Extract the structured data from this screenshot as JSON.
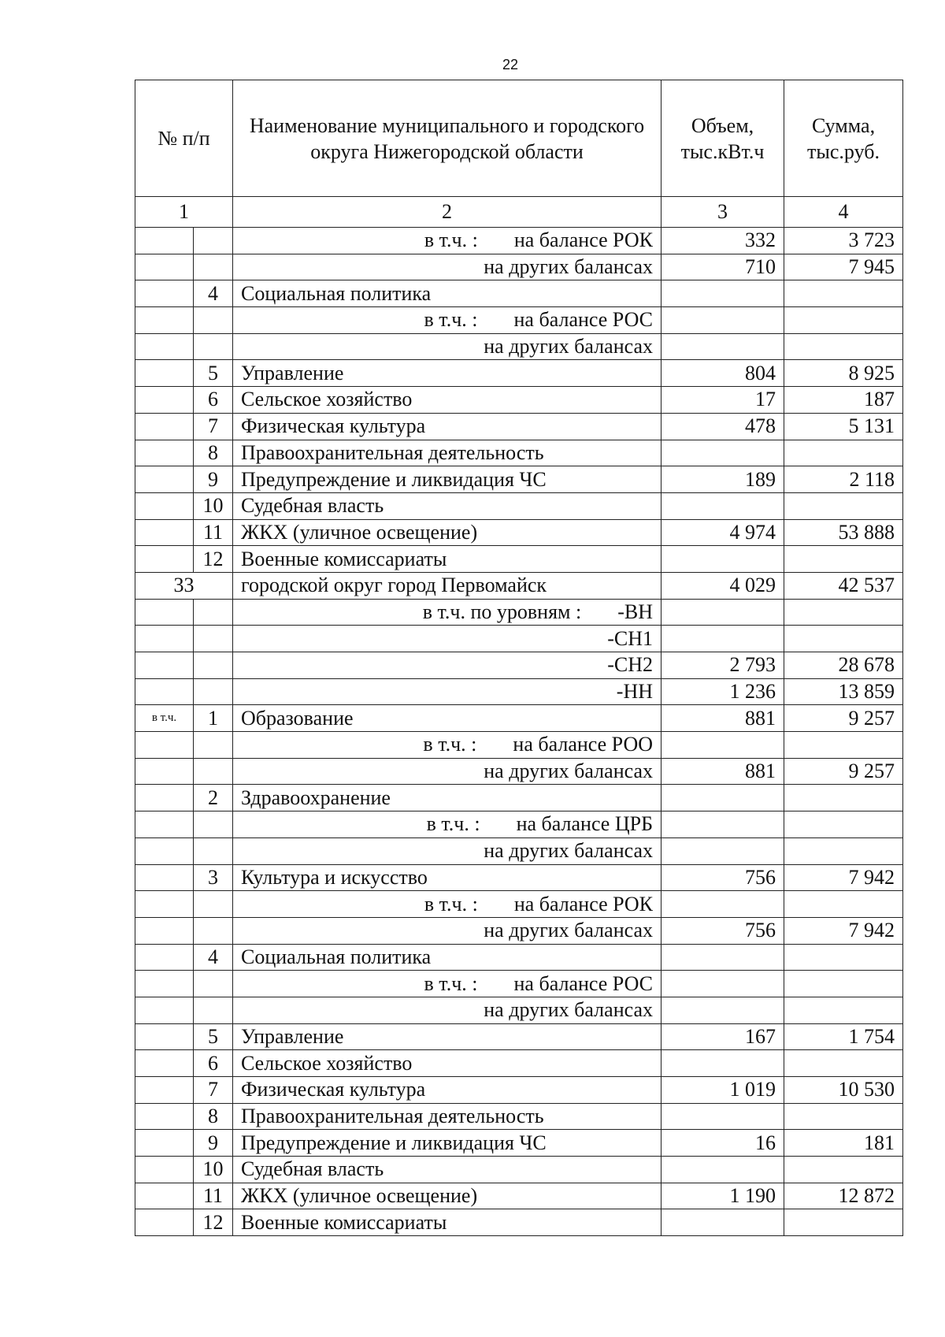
{
  "page_number": "22",
  "header": {
    "col1": "№ п/п",
    "col2": "Наименование муниципального и городского округа Нижегородской области",
    "col3": "Объем, тыс.кВт.ч",
    "col4": "Сумма, тыс.руб.",
    "num1": "1",
    "num2": "2",
    "num3": "3",
    "num4": "4"
  },
  "rows": [
    {
      "a": "",
      "b": "",
      "prefix": "в т.ч. :",
      "name": "на балансе РОК",
      "align": "right",
      "vol": "332",
      "sum": "3 723"
    },
    {
      "a": "",
      "b": "",
      "prefix": "",
      "name": "на других балансах",
      "align": "right",
      "vol": "710",
      "sum": "7 945"
    },
    {
      "a": "",
      "b": "4",
      "prefix": "",
      "name": "Социальная политика",
      "align": "left",
      "vol": "",
      "sum": ""
    },
    {
      "a": "",
      "b": "",
      "prefix": "в т.ч. :",
      "name": "на балансе РОС",
      "align": "right",
      "vol": "",
      "sum": ""
    },
    {
      "a": "",
      "b": "",
      "prefix": "",
      "name": "на других балансах",
      "align": "right",
      "vol": "",
      "sum": ""
    },
    {
      "a": "",
      "b": "5",
      "prefix": "",
      "name": "Управление",
      "align": "left",
      "vol": "804",
      "sum": "8 925"
    },
    {
      "a": "",
      "b": "6",
      "prefix": "",
      "name": "Сельское хозяйство",
      "align": "left",
      "vol": "17",
      "sum": "187"
    },
    {
      "a": "",
      "b": "7",
      "prefix": "",
      "name": "Физическая культура",
      "align": "left",
      "vol": "478",
      "sum": "5 131"
    },
    {
      "a": "",
      "b": "8",
      "prefix": "",
      "name": "Правоохранительная деятельность",
      "align": "left",
      "vol": "",
      "sum": ""
    },
    {
      "a": "",
      "b": "9",
      "prefix": "",
      "name": "Предупреждение и ликвидация ЧС",
      "align": "left",
      "vol": "189",
      "sum": "2 118"
    },
    {
      "a": "",
      "b": "10",
      "prefix": "",
      "name": "Судебная власть",
      "align": "left",
      "vol": "",
      "sum": ""
    },
    {
      "a": "",
      "b": "11",
      "prefix": "",
      "name": "ЖКХ (уличное освещение)",
      "align": "left",
      "vol": "4 974",
      "sum": "53 888"
    },
    {
      "a": "",
      "b": "12",
      "prefix": "",
      "name": "Военные комиссариаты",
      "align": "left",
      "vol": "",
      "sum": ""
    },
    {
      "a": "33",
      "b": null,
      "prefix": "",
      "name": "городской округ город Первомайск",
      "align": "left",
      "vol": "4 029",
      "sum": "42 537"
    },
    {
      "a": "",
      "b": "",
      "prefix": "в т.ч. по уровням :",
      "name": "-ВН",
      "align": "right",
      "vol": "",
      "sum": ""
    },
    {
      "a": "",
      "b": "",
      "prefix": "",
      "name": "-СН1",
      "align": "right",
      "vol": "",
      "sum": ""
    },
    {
      "a": "",
      "b": "",
      "prefix": "",
      "name": "-СН2",
      "align": "right",
      "vol": "2 793",
      "sum": "28 678"
    },
    {
      "a": "",
      "b": "",
      "prefix": "",
      "name": "-НН",
      "align": "right",
      "vol": "1 236",
      "sum": "13 859"
    },
    {
      "a": "в т.ч.",
      "b": "1",
      "prefix": "",
      "name": "Образование",
      "align": "left",
      "vol": "881",
      "sum": "9 257"
    },
    {
      "a": "",
      "b": "",
      "prefix": "в т.ч. :",
      "name": "на балансе РОО",
      "align": "right",
      "vol": "",
      "sum": ""
    },
    {
      "a": "",
      "b": "",
      "prefix": "",
      "name": "на других балансах",
      "align": "right",
      "vol": "881",
      "sum": "9 257"
    },
    {
      "a": "",
      "b": "2",
      "prefix": "",
      "name": "Здравоохранение",
      "align": "left",
      "vol": "",
      "sum": ""
    },
    {
      "a": "",
      "b": "",
      "prefix": "в т.ч. :",
      "name": "на балансе ЦРБ",
      "align": "right",
      "vol": "",
      "sum": ""
    },
    {
      "a": "",
      "b": "",
      "prefix": "",
      "name": "на других балансах",
      "align": "right",
      "vol": "",
      "sum": ""
    },
    {
      "a": "",
      "b": "3",
      "prefix": "",
      "name": "Культура и искусство",
      "align": "left",
      "vol": "756",
      "sum": "7 942"
    },
    {
      "a": "",
      "b": "",
      "prefix": "в т.ч. :",
      "name": "на балансе РОК",
      "align": "right",
      "vol": "",
      "sum": ""
    },
    {
      "a": "",
      "b": "",
      "prefix": "",
      "name": "на других балансах",
      "align": "right",
      "vol": "756",
      "sum": "7 942"
    },
    {
      "a": "",
      "b": "4",
      "prefix": "",
      "name": "Социальная политика",
      "align": "left",
      "vol": "",
      "sum": ""
    },
    {
      "a": "",
      "b": "",
      "prefix": "в т.ч. :",
      "name": "на балансе РОС",
      "align": "right",
      "vol": "",
      "sum": ""
    },
    {
      "a": "",
      "b": "",
      "prefix": "",
      "name": "на других балансах",
      "align": "right",
      "vol": "",
      "sum": ""
    },
    {
      "a": "",
      "b": "5",
      "prefix": "",
      "name": "Управление",
      "align": "left",
      "vol": "167",
      "sum": "1 754"
    },
    {
      "a": "",
      "b": "6",
      "prefix": "",
      "name": "Сельское хозяйство",
      "align": "left",
      "vol": "",
      "sum": ""
    },
    {
      "a": "",
      "b": "7",
      "prefix": "",
      "name": "Физическая культура",
      "align": "left",
      "vol": "1 019",
      "sum": "10 530"
    },
    {
      "a": "",
      "b": "8",
      "prefix": "",
      "name": "Правоохранительная деятельность",
      "align": "left",
      "vol": "",
      "sum": ""
    },
    {
      "a": "",
      "b": "9",
      "prefix": "",
      "name": "Предупреждение и ликвидация ЧС",
      "align": "left",
      "vol": "16",
      "sum": "181"
    },
    {
      "a": "",
      "b": "10",
      "prefix": "",
      "name": "Судебная власть",
      "align": "left",
      "vol": "",
      "sum": ""
    },
    {
      "a": "",
      "b": "11",
      "prefix": "",
      "name": "ЖКХ (уличное освещение)",
      "align": "left",
      "vol": "1 190",
      "sum": "12 872"
    },
    {
      "a": "",
      "b": "12",
      "prefix": "",
      "name": "Военные комиссариаты",
      "align": "left",
      "vol": "",
      "sum": ""
    }
  ]
}
